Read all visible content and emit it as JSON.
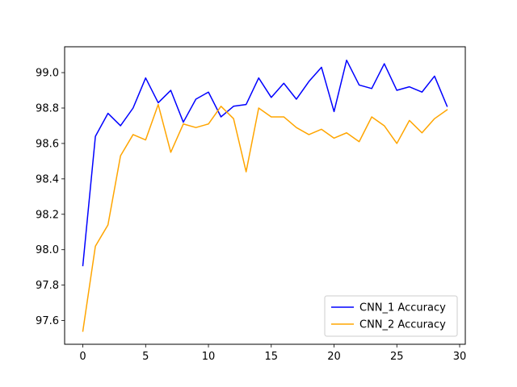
{
  "chart_data": {
    "type": "line",
    "title": "",
    "xlabel": "",
    "ylabel": "",
    "xlim": [
      -1.45,
      30.45
    ],
    "ylim": [
      97.466,
      99.146
    ],
    "xticks": [
      0,
      5,
      10,
      15,
      20,
      25,
      30
    ],
    "yticks": [
      97.6,
      97.8,
      98.0,
      98.2,
      98.4,
      98.6,
      98.8,
      99.0
    ],
    "grid": false,
    "legend_position": "lower-right",
    "x": [
      0,
      1,
      2,
      3,
      4,
      5,
      6,
      7,
      8,
      9,
      10,
      11,
      12,
      13,
      14,
      15,
      16,
      17,
      18,
      19,
      20,
      21,
      22,
      23,
      24,
      25,
      26,
      27,
      28,
      29
    ],
    "series": [
      {
        "name": "CNN_1 Accuracy",
        "color": "#0000ff",
        "values": [
          97.91,
          98.64,
          98.77,
          98.7,
          98.8,
          98.97,
          98.83,
          98.9,
          98.72,
          98.85,
          98.89,
          98.75,
          98.81,
          98.82,
          98.97,
          98.86,
          98.94,
          98.85,
          98.95,
          99.03,
          98.78,
          99.07,
          98.93,
          98.91,
          99.05,
          98.9,
          98.92,
          98.89,
          98.98,
          98.81
        ]
      },
      {
        "name": "CNN_2 Accuracy",
        "color": "#ffa500",
        "values": [
          97.54,
          98.02,
          98.14,
          98.53,
          98.65,
          98.62,
          98.82,
          98.55,
          98.71,
          98.69,
          98.71,
          98.81,
          98.74,
          98.44,
          98.8,
          98.75,
          98.75,
          98.69,
          98.65,
          98.68,
          98.63,
          98.66,
          98.61,
          98.75,
          98.7,
          98.6,
          98.73,
          98.66,
          98.74,
          98.79
        ]
      }
    ]
  }
}
